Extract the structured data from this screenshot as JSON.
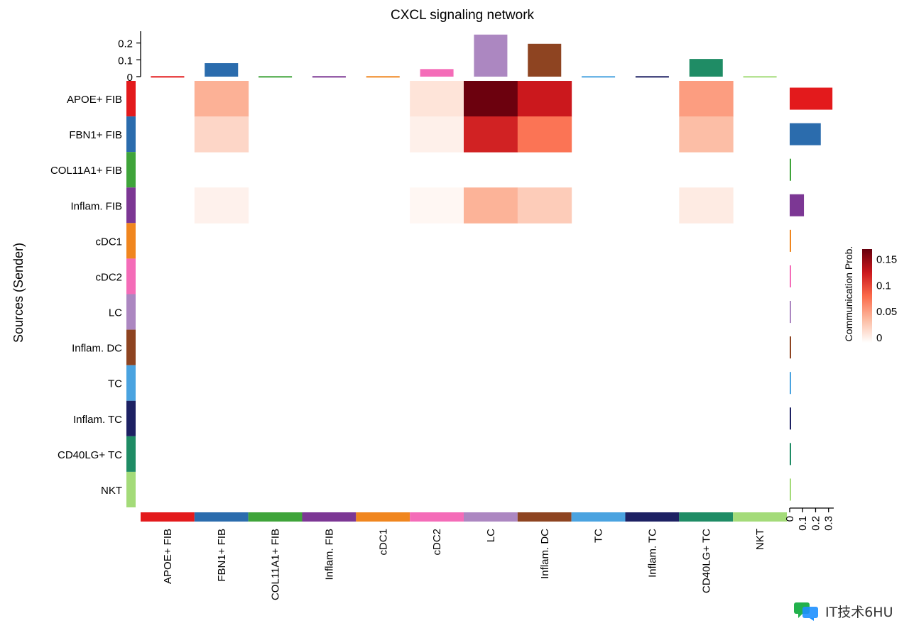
{
  "chart_data": {
    "type": "heatmap",
    "title": "CXCL signaling network",
    "ylabel": "Sources (Sender)",
    "xlabel": "",
    "rows": [
      "APOE+ FIB",
      "FBN1+ FIB",
      "COL11A1+ FIB",
      "Inflam. FIB",
      "cDC1",
      "cDC2",
      "LC",
      "Inflam. DC",
      "TC",
      "Inflam. TC",
      "CD40LG+ TC",
      "NKT"
    ],
    "cols": [
      "APOE+ FIB",
      "FBN1+ FIB",
      "COL11A1+ FIB",
      "Inflam. FIB",
      "cDC1",
      "cDC2",
      "LC",
      "Inflam. DC",
      "TC",
      "Inflam. TC",
      "CD40LG+ TC",
      "NKT"
    ],
    "group_colors": [
      "#e31a1c",
      "#2b6cad",
      "#3fa43a",
      "#7c3794",
      "#f0861f",
      "#f46cb8",
      "#ac87c1",
      "#8e4421",
      "#4aa3e0",
      "#1d2163",
      "#1f8c65",
      "#a4db79"
    ],
    "values": [
      [
        0,
        0.045,
        0,
        0,
        0,
        0.016,
        0.158,
        0.12,
        0,
        0,
        0.055,
        0
      ],
      [
        0,
        0.024,
        0,
        0,
        0,
        0.009,
        0.115,
        0.075,
        0,
        0,
        0.038,
        0
      ],
      [
        0,
        0,
        0,
        0,
        0,
        0,
        0,
        0,
        0,
        0,
        0,
        0
      ],
      [
        0,
        0.008,
        0,
        0,
        0,
        0.005,
        0.044,
        0.03,
        0,
        0,
        0.012,
        0
      ],
      [
        0,
        0,
        0,
        0,
        0,
        0,
        0,
        0,
        0,
        0,
        0,
        0
      ],
      [
        0,
        0,
        0,
        0,
        0,
        0,
        0,
        0,
        0,
        0,
        0,
        0
      ],
      [
        0,
        0,
        0,
        0,
        0,
        0,
        0,
        0,
        0,
        0,
        0,
        0
      ],
      [
        0,
        0,
        0,
        0,
        0,
        0,
        0,
        0,
        0,
        0,
        0,
        0
      ],
      [
        0,
        0,
        0,
        0,
        0,
        0,
        0,
        0,
        0,
        0,
        0,
        0
      ],
      [
        0,
        0,
        0,
        0,
        0,
        0,
        0,
        0,
        0,
        0,
        0,
        0
      ],
      [
        0,
        0,
        0,
        0,
        0,
        0,
        0,
        0,
        0,
        0,
        0,
        0
      ],
      [
        0,
        0,
        0,
        0,
        0,
        0,
        0,
        0,
        0,
        0,
        0,
        0
      ]
    ],
    "top_bars": {
      "values": [
        0.003,
        0.08,
        0.003,
        0.003,
        0.003,
        0.045,
        0.25,
        0.195,
        0.003,
        0.003,
        0.105,
        0.003
      ],
      "ylim": [
        0,
        0.27
      ],
      "ticks": [
        0,
        0.1,
        0.2
      ],
      "tick_labels": [
        "0",
        "0.1",
        "0.2"
      ]
    },
    "right_bars": {
      "values": [
        0.33,
        0.24,
        0.005,
        0.11,
        0.003,
        0.003,
        0.003,
        0.003,
        0.003,
        0.003,
        0.003,
        0.003
      ],
      "xlim": [
        0,
        0.34
      ],
      "ticks": [
        0,
        0.1,
        0.2,
        0.3
      ],
      "tick_labels": [
        "0",
        "0.1",
        "0.2",
        "0.3"
      ]
    },
    "colorbar": {
      "title": "Communication Prob.",
      "range": [
        0,
        0.16
      ],
      "ticks": [
        0,
        0.05,
        0.1,
        0.15
      ],
      "tick_labels": [
        "0",
        "0.05",
        "0.1",
        "0.15"
      ],
      "colors": [
        "#ffffff",
        "#fcbba1",
        "#fb6a4a",
        "#cb181d",
        "#67000d"
      ]
    }
  },
  "watermark": {
    "text": "IT技术6HU",
    "icon": "chat-bubble-logo-icon"
  }
}
